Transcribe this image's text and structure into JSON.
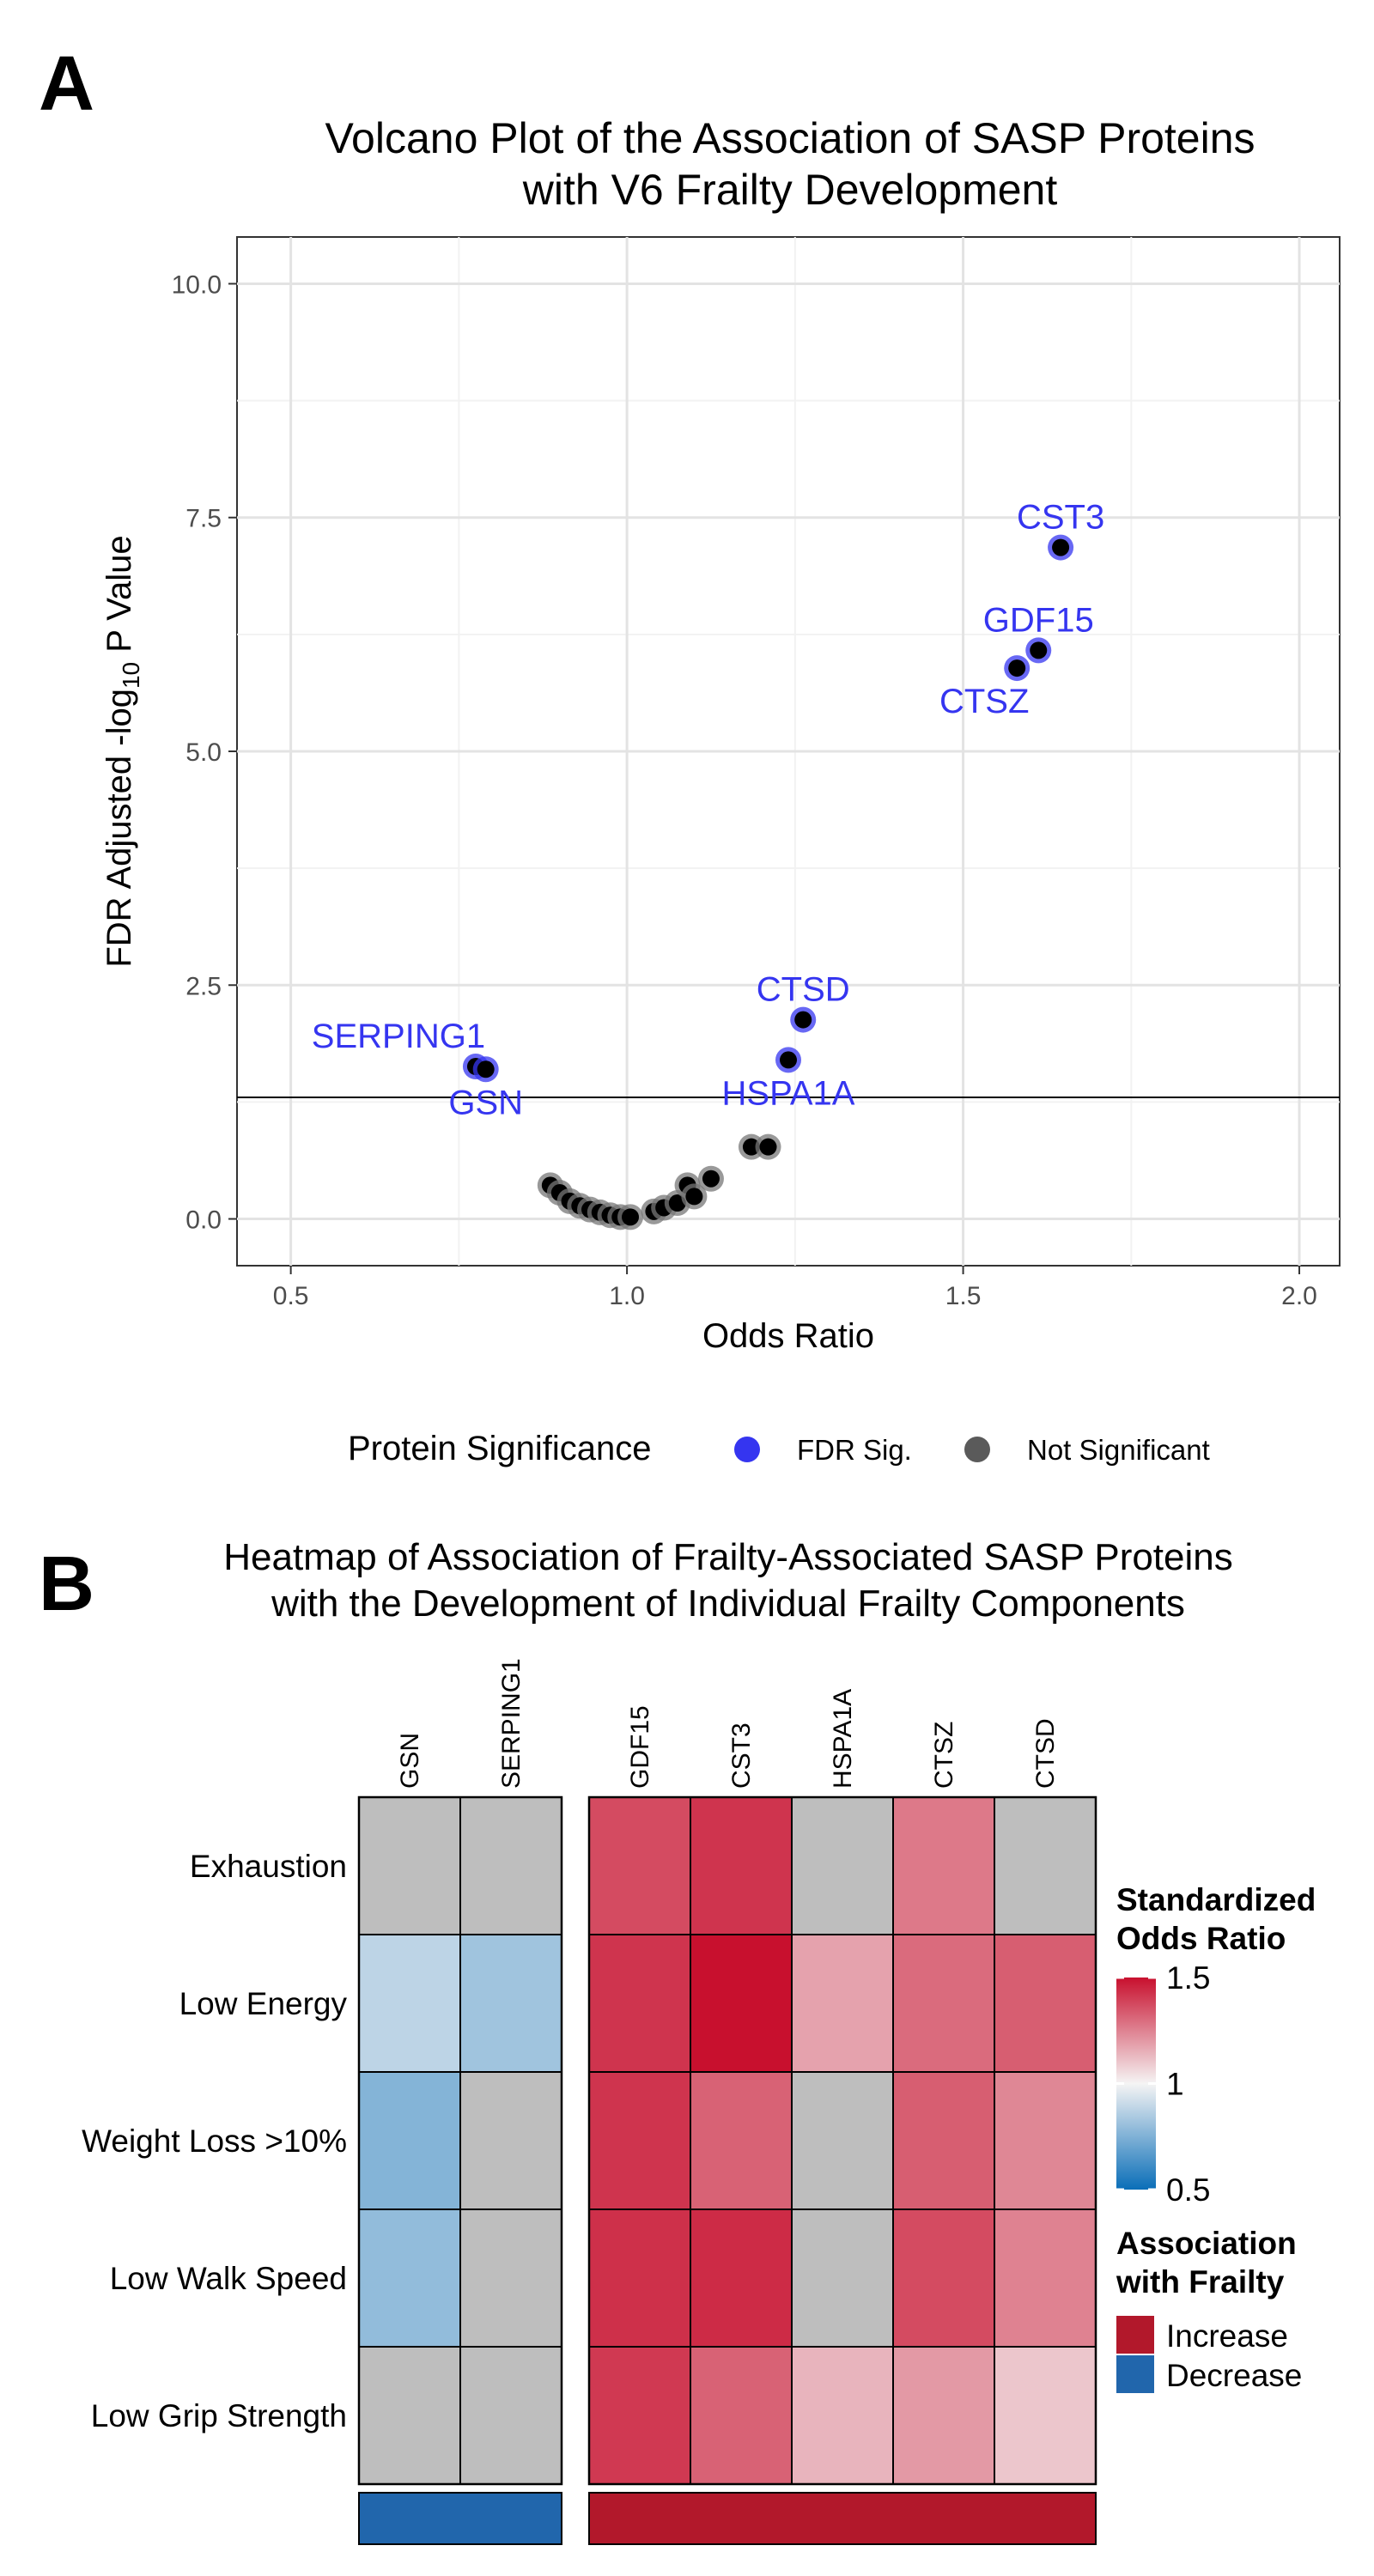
{
  "chart_data": [
    {
      "type": "scatter",
      "panel_label": "A",
      "title_line1": "Volcano Plot of the Association of SASP Proteins",
      "title_line2": "with V6 Frailty Development",
      "xlabel": "Odds Ratio",
      "ylabel_prefix": "FDR Adjusted -log",
      "ylabel_sub": "10",
      "ylabel_suffix": " P Value",
      "xlim": [
        0.42,
        2.06
      ],
      "ylim": [
        -0.5,
        10.5
      ],
      "xticks": [
        0.5,
        1.0,
        1.5,
        2.0
      ],
      "xtick_labels": [
        "0.5",
        "1.0",
        "1.5",
        "2.0"
      ],
      "yticks": [
        0,
        2.5,
        5,
        7.5,
        10
      ],
      "ytick_labels": [
        "0.0",
        "2.5",
        "5.0",
        "7.5",
        "10.0"
      ],
      "threshold_y": 1.3,
      "grid": true,
      "legend": {
        "title": "Protein Significance",
        "position": "bottom",
        "entries": [
          {
            "label": "FDR Sig.",
            "color": "#3535f0"
          },
          {
            "label": "Not Significant",
            "color": "#5a5a5a"
          }
        ]
      },
      "colors": {
        "sig_ring": "#3535f0",
        "nonsig_ring": "#777777",
        "point": "#000000",
        "label": "#3535f0"
      },
      "points": [
        {
          "x": 1.645,
          "y": 7.18,
          "sig": true,
          "label": "CST3",
          "label_pos": "above"
        },
        {
          "x": 1.612,
          "y": 6.08,
          "sig": true,
          "label": "GDF15",
          "label_pos": "above"
        },
        {
          "x": 1.58,
          "y": 5.89,
          "sig": true,
          "label": "CTSZ",
          "label_pos": "below-left"
        },
        {
          "x": 1.262,
          "y": 2.13,
          "sig": true,
          "label": "CTSD",
          "label_pos": "above"
        },
        {
          "x": 1.24,
          "y": 1.7,
          "sig": true,
          "label": "HSPA1A",
          "label_pos": "below"
        },
        {
          "x": 0.775,
          "y": 1.63,
          "sig": true,
          "label": "SERPING1",
          "label_pos": "above-left"
        },
        {
          "x": 0.79,
          "y": 1.6,
          "sig": true,
          "label": "GSN",
          "label_pos": "below"
        },
        {
          "x": 0.886,
          "y": 0.36,
          "sig": false
        },
        {
          "x": 0.9,
          "y": 0.28,
          "sig": false
        },
        {
          "x": 0.915,
          "y": 0.19,
          "sig": false
        },
        {
          "x": 0.93,
          "y": 0.14,
          "sig": false
        },
        {
          "x": 0.945,
          "y": 0.1,
          "sig": false
        },
        {
          "x": 0.96,
          "y": 0.07,
          "sig": false
        },
        {
          "x": 0.975,
          "y": 0.04,
          "sig": false
        },
        {
          "x": 0.99,
          "y": 0.02,
          "sig": false
        },
        {
          "x": 1.005,
          "y": 0.02,
          "sig": false
        },
        {
          "x": 1.04,
          "y": 0.08,
          "sig": false
        },
        {
          "x": 1.055,
          "y": 0.12,
          "sig": false
        },
        {
          "x": 1.075,
          "y": 0.17,
          "sig": false
        },
        {
          "x": 1.09,
          "y": 0.36,
          "sig": false
        },
        {
          "x": 1.1,
          "y": 0.24,
          "sig": false
        },
        {
          "x": 1.125,
          "y": 0.43,
          "sig": false
        },
        {
          "x": 1.185,
          "y": 0.77,
          "sig": false
        },
        {
          "x": 1.21,
          "y": 0.77,
          "sig": false
        }
      ]
    },
    {
      "type": "heatmap",
      "panel_label": "B",
      "title_line1": "Heatmap of Association of Frailty-Associated SASP Proteins",
      "title_line2": "with the Development of Individual Frailty Components",
      "rows": [
        "Exhaustion",
        "Low Energy",
        "Weight Loss >10%",
        "Low Walk Speed",
        "Low Grip Strength"
      ],
      "column_groups": [
        {
          "name": "Decrease",
          "columns": [
            "GSN",
            "SERPING1"
          ]
        },
        {
          "name": "Increase",
          "columns": [
            "GDF15",
            "CST3",
            "HSPA1A",
            "CTSZ",
            "CTSD"
          ]
        }
      ],
      "values": [
        [
          null,
          null,
          1.37,
          1.42,
          null,
          1.27,
          null
        ],
        [
          0.88,
          0.82,
          1.42,
          1.5,
          1.18,
          1.3,
          1.33
        ],
        [
          0.76,
          null,
          1.42,
          1.32,
          null,
          1.33,
          1.24
        ],
        [
          0.79,
          null,
          1.43,
          1.44,
          null,
          1.37,
          1.25
        ],
        [
          null,
          null,
          1.41,
          1.32,
          1.14,
          1.2,
          1.1
        ]
      ],
      "na_color": "#bebebe",
      "color_scale": {
        "title_line1": "Standardized",
        "title_line2": "Odds Ratio",
        "min": 0.5,
        "mid": 1,
        "max": 1.5,
        "ticks": [
          1.5,
          1,
          0.5
        ],
        "tick_labels": [
          "1.5",
          "1",
          "0.5"
        ],
        "low_color": "#0a6eb8",
        "mid_color": "#f5f4f4",
        "high_color": "#c8102e"
      },
      "association_legend": {
        "title_line1": "Association",
        "title_line2": "with Frailty",
        "entries": [
          {
            "label": "Increase",
            "color": "#b2182b"
          },
          {
            "label": "Decrease",
            "color": "#2166ac"
          }
        ]
      }
    }
  ]
}
